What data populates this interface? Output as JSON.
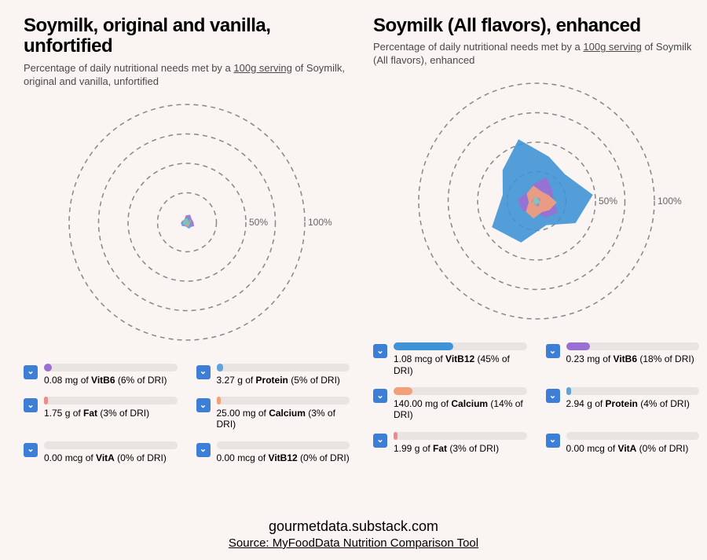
{
  "layout": {
    "background_color": "#faf4f2",
    "title_fontsize": 24,
    "subtitle_fontsize": 13,
    "subtitle_color": "#4a4a4a",
    "chev_bg": "#3d7fd6",
    "track_bg": "#e8e4e2"
  },
  "radar": {
    "rings": [
      25,
      50,
      75,
      100
    ],
    "ring_color": "#888888",
    "ring_dash": "6 5",
    "labels": [
      {
        "text": "50%",
        "at": 50
      },
      {
        "text": "100%",
        "at": 100
      }
    ],
    "colors": {
      "VitB6": "#9b6fd1",
      "Protein": "#5ea3e0",
      "Fat": "#f08a8a",
      "Calcium": "#f2a07a",
      "VitA": "#7fc8bb",
      "VitB12": "#4093d6"
    }
  },
  "panels": [
    {
      "title": "Soymilk, original and vanilla, unfortified",
      "subtitle_prefix": "Percentage of daily nutritional needs met by a ",
      "subtitle_serving": "100g serving",
      "subtitle_suffix": " of Soymilk, original and vanilla, unfortified",
      "nutrients": [
        {
          "amount": "0.08 mg",
          "name": "VitB6",
          "pct": 6,
          "color": "#9b6fd1"
        },
        {
          "amount": "3.27 g",
          "name": "Protein",
          "pct": 5,
          "color": "#5ea3e0"
        },
        {
          "amount": "1.75 g",
          "name": "Fat",
          "pct": 3,
          "color": "#f08a8a"
        },
        {
          "amount": "25.00 mg",
          "name": "Calcium",
          "pct": 3,
          "color": "#f2a07a"
        },
        {
          "amount": "0.00 mcg",
          "name": "VitA",
          "pct": 0,
          "color": "#7fc8bb"
        },
        {
          "amount": "0.00 mcg",
          "name": "VitB12",
          "pct": 0,
          "color": "#4093d6"
        }
      ]
    },
    {
      "title": "Soymilk (All flavors), enhanced",
      "subtitle_prefix": "Percentage of daily nutritional needs met by a ",
      "subtitle_serving": "100g serving",
      "subtitle_suffix": " of Soymilk (All flavors), enhanced",
      "nutrients": [
        {
          "amount": "1.08 mcg",
          "name": "VitB12",
          "pct": 45,
          "color": "#4093d6"
        },
        {
          "amount": "0.23 mg",
          "name": "VitB6",
          "pct": 18,
          "color": "#9b6fd1"
        },
        {
          "amount": "140.00 mg",
          "name": "Calcium",
          "pct": 14,
          "color": "#f2a07a"
        },
        {
          "amount": "2.94 g",
          "name": "Protein",
          "pct": 4,
          "color": "#5ea3e0"
        },
        {
          "amount": "1.99 g",
          "name": "Fat",
          "pct": 3,
          "color": "#f08a8a"
        },
        {
          "amount": "0.00 mcg",
          "name": "VitA",
          "pct": 0,
          "color": "#7fc8bb"
        }
      ]
    }
  ],
  "footer": {
    "watermark": "gourmetdata.substack.com",
    "source": "Source: MyFoodData Nutrition Comparison Tool"
  }
}
